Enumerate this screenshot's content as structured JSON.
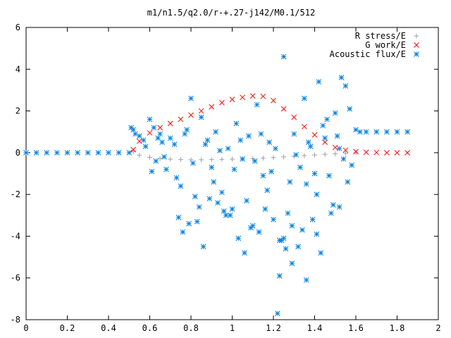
{
  "chart_data": {
    "type": "scatter",
    "title": "m1/n1.5/q2.0/r-+.27-j142/M0.1/512",
    "xlabel": "",
    "ylabel": "",
    "xlim": [
      0,
      2
    ],
    "ylim": [
      -8,
      6
    ],
    "xticks": [
      0,
      0.2,
      0.4,
      0.6,
      0.8,
      1,
      1.2,
      1.4,
      1.6,
      1.8,
      2
    ],
    "xtick_labels": [
      "0",
      "0.2",
      "0.4",
      "0.6",
      "0.8",
      "1",
      "1.2",
      "1.4",
      "1.6",
      "1.8",
      "2"
    ],
    "yticks": [
      -8,
      -6,
      -4,
      -2,
      0,
      2,
      4,
      6
    ],
    "ytick_labels": [
      "-8",
      "-6",
      "-4",
      "-2",
      "0",
      "2",
      "4",
      "6"
    ],
    "grid": false,
    "legend_position": "top-right",
    "series": [
      {
        "name": "R stress/E",
        "marker": "plus",
        "color": "#a0a0a0",
        "x": [
          0.52,
          0.55,
          0.6,
          0.65,
          0.7,
          0.75,
          0.8,
          0.85,
          0.9,
          0.95,
          1.0,
          1.05,
          1.1,
          1.15,
          1.2,
          1.25,
          1.3,
          1.35,
          1.4,
          1.45,
          1.5,
          1.55,
          1.6
        ],
        "y": [
          0.05,
          -0.12,
          -0.22,
          -0.28,
          -0.31,
          -0.33,
          -0.34,
          -0.34,
          -0.33,
          -0.32,
          -0.31,
          -0.3,
          -0.28,
          -0.26,
          -0.23,
          -0.2,
          -0.17,
          -0.14,
          -0.11,
          -0.08,
          -0.05,
          -0.02,
          0.0
        ]
      },
      {
        "name": "G work/E",
        "marker": "cross",
        "color": "#ff0000",
        "x": [
          0.52,
          0.55,
          0.6,
          0.65,
          0.7,
          0.75,
          0.8,
          0.85,
          0.9,
          0.95,
          1.0,
          1.05,
          1.1,
          1.15,
          1.2,
          1.25,
          1.3,
          1.35,
          1.4,
          1.45,
          1.5,
          1.55,
          1.6,
          1.65,
          1.7,
          1.75,
          1.8,
          1.85
        ],
        "y": [
          0.15,
          0.55,
          0.95,
          1.2,
          1.4,
          1.6,
          1.8,
          2.0,
          2.2,
          2.4,
          2.55,
          2.65,
          2.72,
          2.7,
          2.5,
          2.1,
          1.7,
          1.25,
          0.85,
          0.5,
          0.25,
          0.12,
          0.05,
          0.02,
          0.01,
          0.0,
          0.0,
          0.0
        ]
      },
      {
        "name": "Acoustic flux/E",
        "marker": "star",
        "color": "#0080e0",
        "x": [
          0.0,
          0.05,
          0.1,
          0.15,
          0.2,
          0.25,
          0.3,
          0.35,
          0.4,
          0.45,
          0.5,
          0.51,
          0.52,
          0.53,
          0.55,
          0.57,
          0.6,
          0.62,
          0.63,
          0.65,
          0.66,
          0.68,
          0.7,
          0.72,
          0.75,
          0.78,
          0.8,
          0.82,
          0.85,
          0.88,
          0.9,
          0.92,
          0.95,
          0.98,
          1.0,
          1.02,
          1.05,
          1.08,
          1.1,
          1.12,
          1.15,
          1.18,
          1.2,
          1.22,
          1.25,
          1.28,
          1.3,
          1.32,
          1.35,
          1.38,
          1.4,
          1.42,
          1.45,
          1.48,
          1.5,
          1.52,
          1.55,
          1.58,
          1.6,
          1.62,
          1.65,
          1.7,
          1.75,
          1.8,
          1.85,
          0.58,
          0.61,
          0.64,
          0.67,
          0.73,
          0.77,
          0.81,
          0.84,
          0.87,
          0.91,
          0.94,
          0.97,
          1.01,
          1.04,
          1.07,
          1.11,
          1.14,
          1.17,
          1.21,
          1.24,
          1.27,
          1.31,
          1.34,
          1.37,
          1.41,
          1.44,
          1.47,
          1.51,
          1.54,
          1.57,
          0.74,
          0.79,
          0.86,
          0.93,
          0.99,
          1.06,
          1.13,
          1.19,
          1.23,
          1.26,
          1.29,
          1.33,
          1.36,
          1.39,
          1.43,
          1.46,
          1.49,
          1.53,
          1.56,
          0.76,
          0.83,
          0.89,
          0.96,
          1.03,
          1.09,
          1.16,
          1.23,
          1.25,
          1.29,
          1.36,
          1.41,
          1.52
        ],
        "y": [
          0.0,
          0.0,
          0.0,
          0.0,
          0.0,
          0.0,
          0.0,
          0.0,
          0.0,
          0.0,
          0.0,
          1.2,
          1.1,
          0.9,
          0.8,
          0.6,
          1.6,
          1.2,
          -0.4,
          0.9,
          0.5,
          -0.8,
          0.7,
          0.4,
          -1.6,
          1.1,
          2.6,
          -2.1,
          1.7,
          0.6,
          -0.7,
          1.0,
          -1.9,
          0.2,
          -2.7,
          1.4,
          -0.3,
          0.8,
          -3.5,
          2.3,
          -1.1,
          0.5,
          -3.2,
          -7.7,
          4.6,
          -1.4,
          0.9,
          -4.5,
          2.6,
          0.3,
          -1.0,
          3.4,
          0.7,
          -2.9,
          1.9,
          0.2,
          3.2,
          -0.6,
          1.1,
          1.0,
          1.0,
          1.0,
          1.0,
          1.0,
          1.0,
          0.3,
          -0.9,
          0.7,
          -0.2,
          -1.2,
          0.9,
          -0.5,
          -2.6,
          0.4,
          -1.4,
          0.1,
          -3.0,
          -0.8,
          0.6,
          -2.3,
          -0.4,
          0.9,
          -1.8,
          0.2,
          -4.2,
          -2.9,
          -0.1,
          -3.7,
          0.5,
          -2.0,
          1.3,
          -1.1,
          0.8,
          -0.3,
          2.1,
          -3.1,
          -3.4,
          -4.5,
          -2.4,
          -3.0,
          -4.8,
          -3.8,
          -0.9,
          -5.9,
          -4.6,
          -5.3,
          -0.7,
          -6.1,
          -3.2,
          -4.8,
          1.6,
          -2.5,
          3.6,
          -1.4,
          -3.8,
          -3.3,
          -2.2,
          -2.8,
          -4.1,
          -3.6,
          -2.7,
          -4.2,
          -4.1,
          -3.5,
          -1.5,
          -3.9,
          -2.6
        ]
      }
    ]
  }
}
